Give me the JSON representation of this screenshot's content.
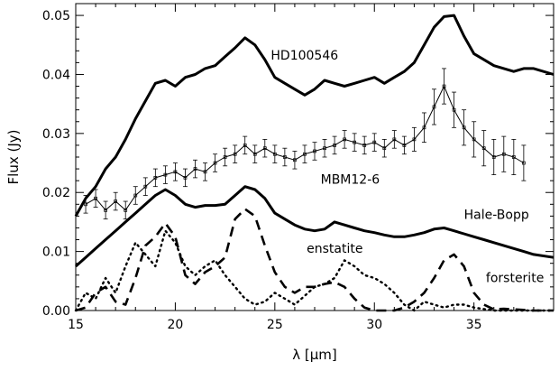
{
  "chart_data": {
    "type": "line",
    "title": "",
    "xlabel": "λ [μm]",
    "ylabel": "Flux (Jy)",
    "xlim": [
      15,
      39
    ],
    "ylim": [
      0.0,
      0.052
    ],
    "x_ticks": [
      15,
      20,
      25,
      30,
      35
    ],
    "x_tick_labels": [
      "15",
      "20",
      "25",
      "30",
      "35"
    ],
    "y_ticks": [
      0.0,
      0.01,
      0.02,
      0.03,
      0.04,
      0.05
    ],
    "y_tick_labels": [
      "0.00",
      "0.01",
      "0.02",
      "0.03",
      "0.04",
      "0.05"
    ],
    "grid": false,
    "legend": "none",
    "series": [
      {
        "name": "HD100546",
        "style": "solid-thick",
        "label_x": 24.8,
        "label_y": 0.0425,
        "points": [
          [
            15,
            0.016
          ],
          [
            15.5,
            0.019
          ],
          [
            16,
            0.021
          ],
          [
            16.5,
            0.024
          ],
          [
            17,
            0.026
          ],
          [
            17.5,
            0.029
          ],
          [
            18,
            0.0325
          ],
          [
            18.5,
            0.0355
          ],
          [
            19,
            0.0385
          ],
          [
            19.5,
            0.039
          ],
          [
            20,
            0.038
          ],
          [
            20.5,
            0.0395
          ],
          [
            21,
            0.04
          ],
          [
            21.5,
            0.041
          ],
          [
            22,
            0.0415
          ],
          [
            22.5,
            0.043
          ],
          [
            23,
            0.0445
          ],
          [
            23.5,
            0.0462
          ],
          [
            24,
            0.045
          ],
          [
            24.5,
            0.0425
          ],
          [
            25,
            0.0395
          ],
          [
            25.5,
            0.0385
          ],
          [
            26,
            0.0375
          ],
          [
            26.5,
            0.0365
          ],
          [
            27,
            0.0375
          ],
          [
            27.5,
            0.039
          ],
          [
            28,
            0.0385
          ],
          [
            28.5,
            0.038
          ],
          [
            29,
            0.0385
          ],
          [
            29.5,
            0.039
          ],
          [
            30,
            0.0395
          ],
          [
            30.5,
            0.0385
          ],
          [
            31,
            0.0395
          ],
          [
            31.5,
            0.0405
          ],
          [
            32,
            0.042
          ],
          [
            32.5,
            0.045
          ],
          [
            33,
            0.048
          ],
          [
            33.5,
            0.0498
          ],
          [
            34,
            0.05
          ],
          [
            34.5,
            0.0465
          ],
          [
            35,
            0.0435
          ],
          [
            35.5,
            0.0425
          ],
          [
            36,
            0.0415
          ],
          [
            36.5,
            0.041
          ],
          [
            37,
            0.0405
          ],
          [
            37.5,
            0.041
          ],
          [
            38,
            0.041
          ],
          [
            39,
            0.04
          ]
        ]
      },
      {
        "name": "MBM12-6",
        "style": "thin-with-errorbars",
        "label_x": 27.3,
        "label_y": 0.0215,
        "points": [
          [
            15.5,
            0.018
          ],
          [
            16,
            0.019
          ],
          [
            16.5,
            0.017
          ],
          [
            17,
            0.0185
          ],
          [
            17.5,
            0.017
          ],
          [
            18,
            0.0195
          ],
          [
            18.5,
            0.021
          ],
          [
            19,
            0.0225
          ],
          [
            19.5,
            0.023
          ],
          [
            20,
            0.0235
          ],
          [
            20.5,
            0.0225
          ],
          [
            21,
            0.024
          ],
          [
            21.5,
            0.0235
          ],
          [
            22,
            0.025
          ],
          [
            22.5,
            0.026
          ],
          [
            23,
            0.0265
          ],
          [
            23.5,
            0.028
          ],
          [
            24,
            0.0265
          ],
          [
            24.5,
            0.0275
          ],
          [
            25,
            0.0265
          ],
          [
            25.5,
            0.026
          ],
          [
            26,
            0.0255
          ],
          [
            26.5,
            0.0265
          ],
          [
            27,
            0.027
          ],
          [
            27.5,
            0.0275
          ],
          [
            28,
            0.028
          ],
          [
            28.5,
            0.029
          ],
          [
            29,
            0.0285
          ],
          [
            29.5,
            0.028
          ],
          [
            30,
            0.0285
          ],
          [
            30.5,
            0.0275
          ],
          [
            31,
            0.029
          ],
          [
            31.5,
            0.028
          ],
          [
            32,
            0.029
          ],
          [
            32.5,
            0.031
          ],
          [
            33,
            0.0345
          ],
          [
            33.5,
            0.038
          ],
          [
            34,
            0.034
          ],
          [
            34.5,
            0.031
          ],
          [
            35,
            0.029
          ],
          [
            35.5,
            0.0275
          ],
          [
            36,
            0.026
          ],
          [
            36.5,
            0.0265
          ],
          [
            37,
            0.026
          ],
          [
            37.5,
            0.025
          ]
        ],
        "errors": [
          0.0015,
          0.0015,
          0.0015,
          0.0015,
          0.0015,
          0.0015,
          0.0015,
          0.0015,
          0.0015,
          0.0015,
          0.0015,
          0.0015,
          0.0015,
          0.0015,
          0.0015,
          0.0015,
          0.0015,
          0.0015,
          0.0015,
          0.0015,
          0.0015,
          0.0015,
          0.0015,
          0.0015,
          0.0015,
          0.0015,
          0.0015,
          0.0015,
          0.0015,
          0.0015,
          0.0015,
          0.0015,
          0.0015,
          0.002,
          0.0025,
          0.003,
          0.003,
          0.003,
          0.003,
          0.003,
          0.003,
          0.003,
          0.003,
          0.003,
          0.003
        ]
      },
      {
        "name": "Hale-Bopp",
        "style": "solid-thick",
        "label_x": 34.5,
        "label_y": 0.0155,
        "points": [
          [
            15,
            0.0075
          ],
          [
            15.5,
            0.009
          ],
          [
            16,
            0.0105
          ],
          [
            16.5,
            0.012
          ],
          [
            17,
            0.0135
          ],
          [
            17.5,
            0.015
          ],
          [
            18,
            0.0165
          ],
          [
            18.5,
            0.018
          ],
          [
            19,
            0.0195
          ],
          [
            19.5,
            0.0205
          ],
          [
            20,
            0.0195
          ],
          [
            20.5,
            0.018
          ],
          [
            21,
            0.0175
          ],
          [
            21.5,
            0.0178
          ],
          [
            22,
            0.0178
          ],
          [
            22.5,
            0.018
          ],
          [
            23,
            0.0195
          ],
          [
            23.5,
            0.021
          ],
          [
            24,
            0.0205
          ],
          [
            24.5,
            0.019
          ],
          [
            25,
            0.0165
          ],
          [
            25.5,
            0.0155
          ],
          [
            26,
            0.0145
          ],
          [
            26.5,
            0.0138
          ],
          [
            27,
            0.0135
          ],
          [
            27.5,
            0.0138
          ],
          [
            28,
            0.015
          ],
          [
            28.5,
            0.0145
          ],
          [
            29,
            0.014
          ],
          [
            29.5,
            0.0135
          ],
          [
            30,
            0.0132
          ],
          [
            30.5,
            0.0128
          ],
          [
            31,
            0.0125
          ],
          [
            31.5,
            0.0125
          ],
          [
            32,
            0.0128
          ],
          [
            32.5,
            0.0132
          ],
          [
            33,
            0.0138
          ],
          [
            33.5,
            0.014
          ],
          [
            34,
            0.0135
          ],
          [
            34.5,
            0.013
          ],
          [
            35,
            0.0125
          ],
          [
            35.5,
            0.012
          ],
          [
            36,
            0.0115
          ],
          [
            36.5,
            0.011
          ],
          [
            37,
            0.0105
          ],
          [
            37.5,
            0.01
          ],
          [
            38,
            0.0095
          ],
          [
            39,
            0.009
          ]
        ]
      },
      {
        "name": "enstatite",
        "style": "dotted",
        "label_x": 26.6,
        "label_y": 0.0098,
        "points": [
          [
            15,
            0.0
          ],
          [
            15.5,
            0.003
          ],
          [
            16,
            0.002
          ],
          [
            16.5,
            0.0055
          ],
          [
            17,
            0.003
          ],
          [
            17.5,
            0.0075
          ],
          [
            18,
            0.0115
          ],
          [
            18.5,
            0.0095
          ],
          [
            19,
            0.0075
          ],
          [
            19.5,
            0.0135
          ],
          [
            20,
            0.0115
          ],
          [
            20.5,
            0.0075
          ],
          [
            21,
            0.006
          ],
          [
            21.5,
            0.0075
          ],
          [
            22,
            0.0085
          ],
          [
            22.5,
            0.006
          ],
          [
            23,
            0.004
          ],
          [
            23.5,
            0.002
          ],
          [
            24,
            0.001
          ],
          [
            24.5,
            0.0015
          ],
          [
            25,
            0.003
          ],
          [
            25.5,
            0.002
          ],
          [
            26,
            0.001
          ],
          [
            26.5,
            0.0025
          ],
          [
            27,
            0.004
          ],
          [
            27.5,
            0.0045
          ],
          [
            28,
            0.0055
          ],
          [
            28.5,
            0.0085
          ],
          [
            29,
            0.0075
          ],
          [
            29.5,
            0.006
          ],
          [
            30,
            0.0055
          ],
          [
            30.5,
            0.0045
          ],
          [
            31,
            0.003
          ],
          [
            31.5,
            0.001
          ],
          [
            32,
            0.0
          ],
          [
            32.5,
            0.0015
          ],
          [
            33,
            0.001
          ],
          [
            33.5,
            0.0005
          ],
          [
            34,
            0.001
          ],
          [
            34.5,
            0.001
          ],
          [
            35,
            0.0005
          ],
          [
            36,
            0.0
          ],
          [
            39,
            0.0
          ]
        ]
      },
      {
        "name": "forsterite",
        "style": "dashed",
        "label_x": 35.6,
        "label_y": 0.0048,
        "points": [
          [
            15,
            0.0
          ],
          [
            15.5,
            0.0005
          ],
          [
            16,
            0.003
          ],
          [
            16.5,
            0.004
          ],
          [
            17,
            0.0015
          ],
          [
            17.5,
            0.001
          ],
          [
            18,
            0.0055
          ],
          [
            18.5,
            0.011
          ],
          [
            19,
            0.0125
          ],
          [
            19.5,
            0.0148
          ],
          [
            20,
            0.0125
          ],
          [
            20.5,
            0.006
          ],
          [
            21,
            0.0045
          ],
          [
            21.5,
            0.0065
          ],
          [
            22,
            0.0075
          ],
          [
            22.5,
            0.009
          ],
          [
            23,
            0.0155
          ],
          [
            23.5,
            0.0172
          ],
          [
            24,
            0.016
          ],
          [
            24.5,
            0.011
          ],
          [
            25,
            0.0065
          ],
          [
            25.5,
            0.004
          ],
          [
            26,
            0.003
          ],
          [
            26.5,
            0.004
          ],
          [
            27,
            0.004
          ],
          [
            27.5,
            0.0045
          ],
          [
            28,
            0.0048
          ],
          [
            28.5,
            0.004
          ],
          [
            29,
            0.002
          ],
          [
            29.5,
            0.0005
          ],
          [
            30,
            0.0
          ],
          [
            30.5,
            0.0
          ],
          [
            31,
            0.0
          ],
          [
            31.5,
            0.0005
          ],
          [
            32,
            0.0015
          ],
          [
            32.5,
            0.003
          ],
          [
            33,
            0.0055
          ],
          [
            33.5,
            0.0085
          ],
          [
            34,
            0.0095
          ],
          [
            34.5,
            0.0075
          ],
          [
            35,
            0.003
          ],
          [
            35.5,
            0.001
          ],
          [
            36,
            0.0002
          ],
          [
            36.5,
            0.0003
          ],
          [
            37,
            0.0002
          ],
          [
            38,
            0.0
          ],
          [
            39,
            0.0
          ]
        ]
      }
    ]
  }
}
